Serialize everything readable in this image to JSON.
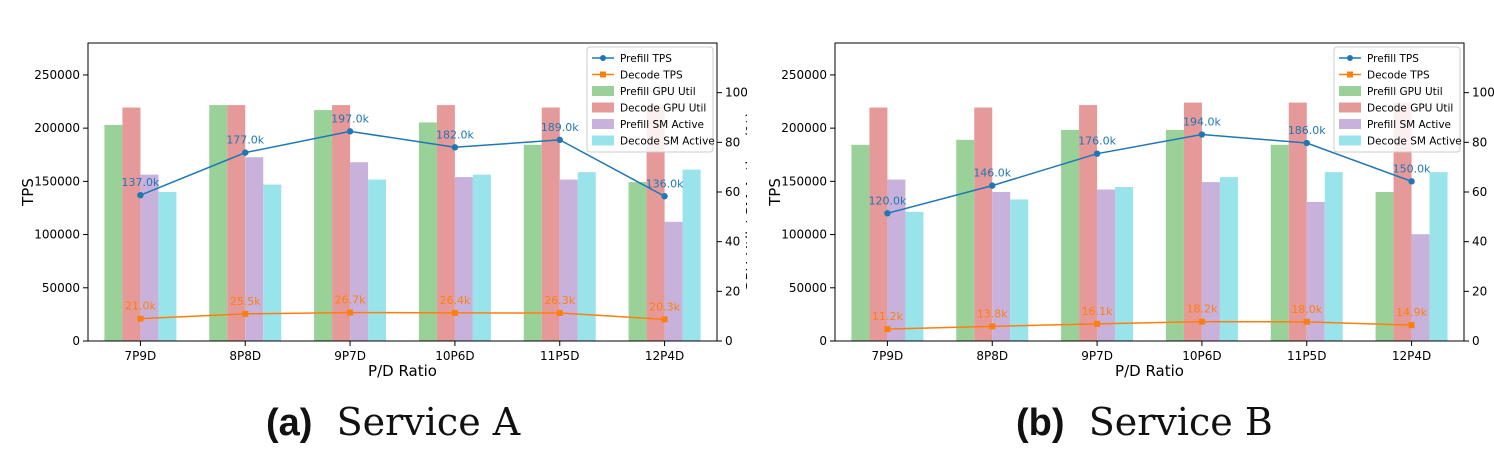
{
  "captions": [
    {
      "tag": "(a)",
      "text": "Service A"
    },
    {
      "tag": "(b)",
      "text": "Service B"
    }
  ],
  "colors": {
    "prefill_tps": "#1f77b4",
    "decode_tps": "#ff7f0e",
    "prefill_gpu": "#99d199",
    "decode_gpu": "#e59999",
    "prefill_sm": "#c8b2dc",
    "decode_sm": "#99e3ea"
  },
  "chart_data": [
    {
      "type": "bar",
      "categories": [
        "7P9D",
        "8P8D",
        "9P7D",
        "10P6D",
        "11P5D",
        "12P4D"
      ],
      "xlabel": "P/D Ratio",
      "ylabel": "TPS",
      "y2label": "GPU Util / SM Active (%)",
      "ylim": [
        0,
        280000
      ],
      "y2lim": [
        0,
        120
      ],
      "yticks": [
        "0",
        "50000",
        "100000",
        "150000",
        "200000",
        "250000"
      ],
      "y2ticks": [
        "0",
        "20",
        "40",
        "60",
        "80",
        "100"
      ],
      "legend_position": "top-right",
      "grid": false,
      "bar_series": [
        {
          "name": "Prefill GPU Util",
          "values": [
            87,
            95,
            93,
            88,
            79,
            64
          ]
        },
        {
          "name": "Decode GPU Util",
          "values": [
            94,
            95,
            95,
            95,
            94,
            95
          ]
        },
        {
          "name": "Prefill SM Active",
          "values": [
            67,
            74,
            72,
            66,
            65,
            48
          ]
        },
        {
          "name": "Decode SM Active",
          "values": [
            60,
            63,
            65,
            67,
            68,
            69
          ]
        }
      ],
      "line_series": [
        {
          "name": "Prefill TPS",
          "values": [
            137000,
            177000,
            197000,
            182000,
            189000,
            136000
          ],
          "labels": [
            "137.0k",
            "177.0k",
            "197.0k",
            "182.0k",
            "189.0k",
            "136.0k"
          ]
        },
        {
          "name": "Decode TPS",
          "values": [
            21000,
            25500,
            26700,
            26400,
            26300,
            20300
          ],
          "labels": [
            "21.0k",
            "25.5k",
            "26.7k",
            "26.4k",
            "26.3k",
            "20.3k"
          ]
        }
      ]
    },
    {
      "type": "bar",
      "categories": [
        "7P9D",
        "8P8D",
        "9P7D",
        "10P6D",
        "11P5D",
        "12P4D"
      ],
      "xlabel": "P/D Ratio",
      "ylabel": "TPS",
      "y2label": "",
      "ylim": [
        0,
        280000
      ],
      "y2lim": [
        0,
        120
      ],
      "yticks": [
        "0",
        "50000",
        "100000",
        "150000",
        "200000",
        "250000"
      ],
      "y2ticks": [
        "0",
        "20",
        "40",
        "60",
        "80",
        "100"
      ],
      "legend_position": "top-right",
      "grid": false,
      "bar_series": [
        {
          "name": "Prefill GPU Util",
          "values": [
            79,
            81,
            85,
            85,
            79,
            60
          ]
        },
        {
          "name": "Decode GPU Util",
          "values": [
            94,
            94,
            95,
            96,
            96,
            96
          ]
        },
        {
          "name": "Prefill SM Active",
          "values": [
            65,
            60,
            61,
            64,
            56,
            43
          ]
        },
        {
          "name": "Decode SM Active",
          "values": [
            52,
            57,
            62,
            66,
            68,
            68
          ]
        }
      ],
      "line_series": [
        {
          "name": "Prefill TPS",
          "values": [
            120000,
            146000,
            176000,
            194000,
            186000,
            150000
          ],
          "labels": [
            "120.0k",
            "146.0k",
            "176.0k",
            "194.0k",
            "186.0k",
            "150.0k"
          ]
        },
        {
          "name": "Decode TPS",
          "values": [
            11200,
            13800,
            16100,
            18200,
            18000,
            14900
          ],
          "labels": [
            "11.2k",
            "13.8k",
            "16.1k",
            "18.2k",
            "18.0k",
            "14.9k"
          ]
        }
      ]
    }
  ]
}
